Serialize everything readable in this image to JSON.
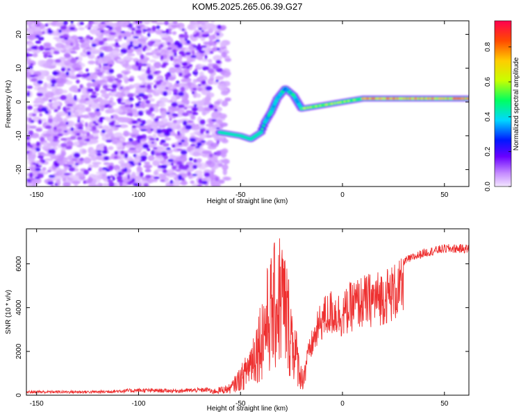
{
  "title": "KOM5.2025.265.06.39.G27",
  "colors": {
    "snr_line": "#ee3030",
    "spectrogram_low": "#7a1cf0",
    "spectrogram_high": "#ff1a1a"
  },
  "chart_data": [
    {
      "type": "heatmap",
      "xlabel": "Height of straight line (km)",
      "ylabel": "Frequency (Hz)",
      "xlim": [
        -155,
        62
      ],
      "ylim": [
        -25,
        24
      ],
      "xticks": [
        -150,
        -100,
        -50,
        0,
        50
      ],
      "yticks": [
        -20,
        -10,
        0,
        10,
        20
      ],
      "colorbar": {
        "label": "Normalized spectral amplitude",
        "range": [
          0,
          0.95
        ],
        "ticks": [
          0.0,
          0.2,
          0.4,
          0.6,
          0.8
        ],
        "colormap": "rainbow (purple-blue-cyan-green-yellow-red)"
      },
      "ridge": [
        {
          "x": -60,
          "y": -9
        },
        {
          "x": -50,
          "y": -10
        },
        {
          "x": -45,
          "y": -11
        },
        {
          "x": -40,
          "y": -9
        },
        {
          "x": -38,
          "y": -6
        },
        {
          "x": -35,
          "y": -3
        },
        {
          "x": -32,
          "y": 1
        },
        {
          "x": -28,
          "y": 4
        },
        {
          "x": -24,
          "y": 2
        },
        {
          "x": -20,
          "y": -2
        },
        {
          "x": -10,
          "y": -1
        },
        {
          "x": 0,
          "y": 0
        },
        {
          "x": 10,
          "y": 1
        },
        {
          "x": 20,
          "y": 1
        },
        {
          "x": 35,
          "y": 1
        },
        {
          "x": 50,
          "y": 1
        },
        {
          "x": 62,
          "y": 1
        }
      ],
      "noise_region": {
        "x_range": [
          -155,
          -60
        ],
        "description": "scattered low-amplitude purple noise"
      }
    },
    {
      "type": "line",
      "xlabel": "Height of straight line (km)",
      "ylabel": "SNR (10 * v/v)",
      "xlim": [
        -155,
        62
      ],
      "ylim": [
        0,
        7600
      ],
      "xticks": [
        -150,
        -100,
        -50,
        0,
        50
      ],
      "yticks": [
        0,
        2000,
        4000,
        6000
      ],
      "envelope": [
        {
          "x": -155,
          "y": 150
        },
        {
          "x": -120,
          "y": 150
        },
        {
          "x": -100,
          "y": 220
        },
        {
          "x": -80,
          "y": 200
        },
        {
          "x": -65,
          "y": 250
        },
        {
          "x": -55,
          "y": 500
        },
        {
          "x": -48,
          "y": 1600
        },
        {
          "x": -42,
          "y": 3500
        },
        {
          "x": -36,
          "y": 6000
        },
        {
          "x": -30,
          "y": 7500
        },
        {
          "x": -26,
          "y": 5200
        },
        {
          "x": -20,
          "y": 1200
        },
        {
          "x": -15,
          "y": 3000
        },
        {
          "x": -10,
          "y": 4500
        },
        {
          "x": -5,
          "y": 4900
        },
        {
          "x": 0,
          "y": 4700
        },
        {
          "x": 5,
          "y": 5300
        },
        {
          "x": 10,
          "y": 5500
        },
        {
          "x": 20,
          "y": 5800
        },
        {
          "x": 30,
          "y": 6300
        },
        {
          "x": 40,
          "y": 6700
        },
        {
          "x": 50,
          "y": 6900
        },
        {
          "x": 62,
          "y": 6900
        }
      ]
    }
  ]
}
